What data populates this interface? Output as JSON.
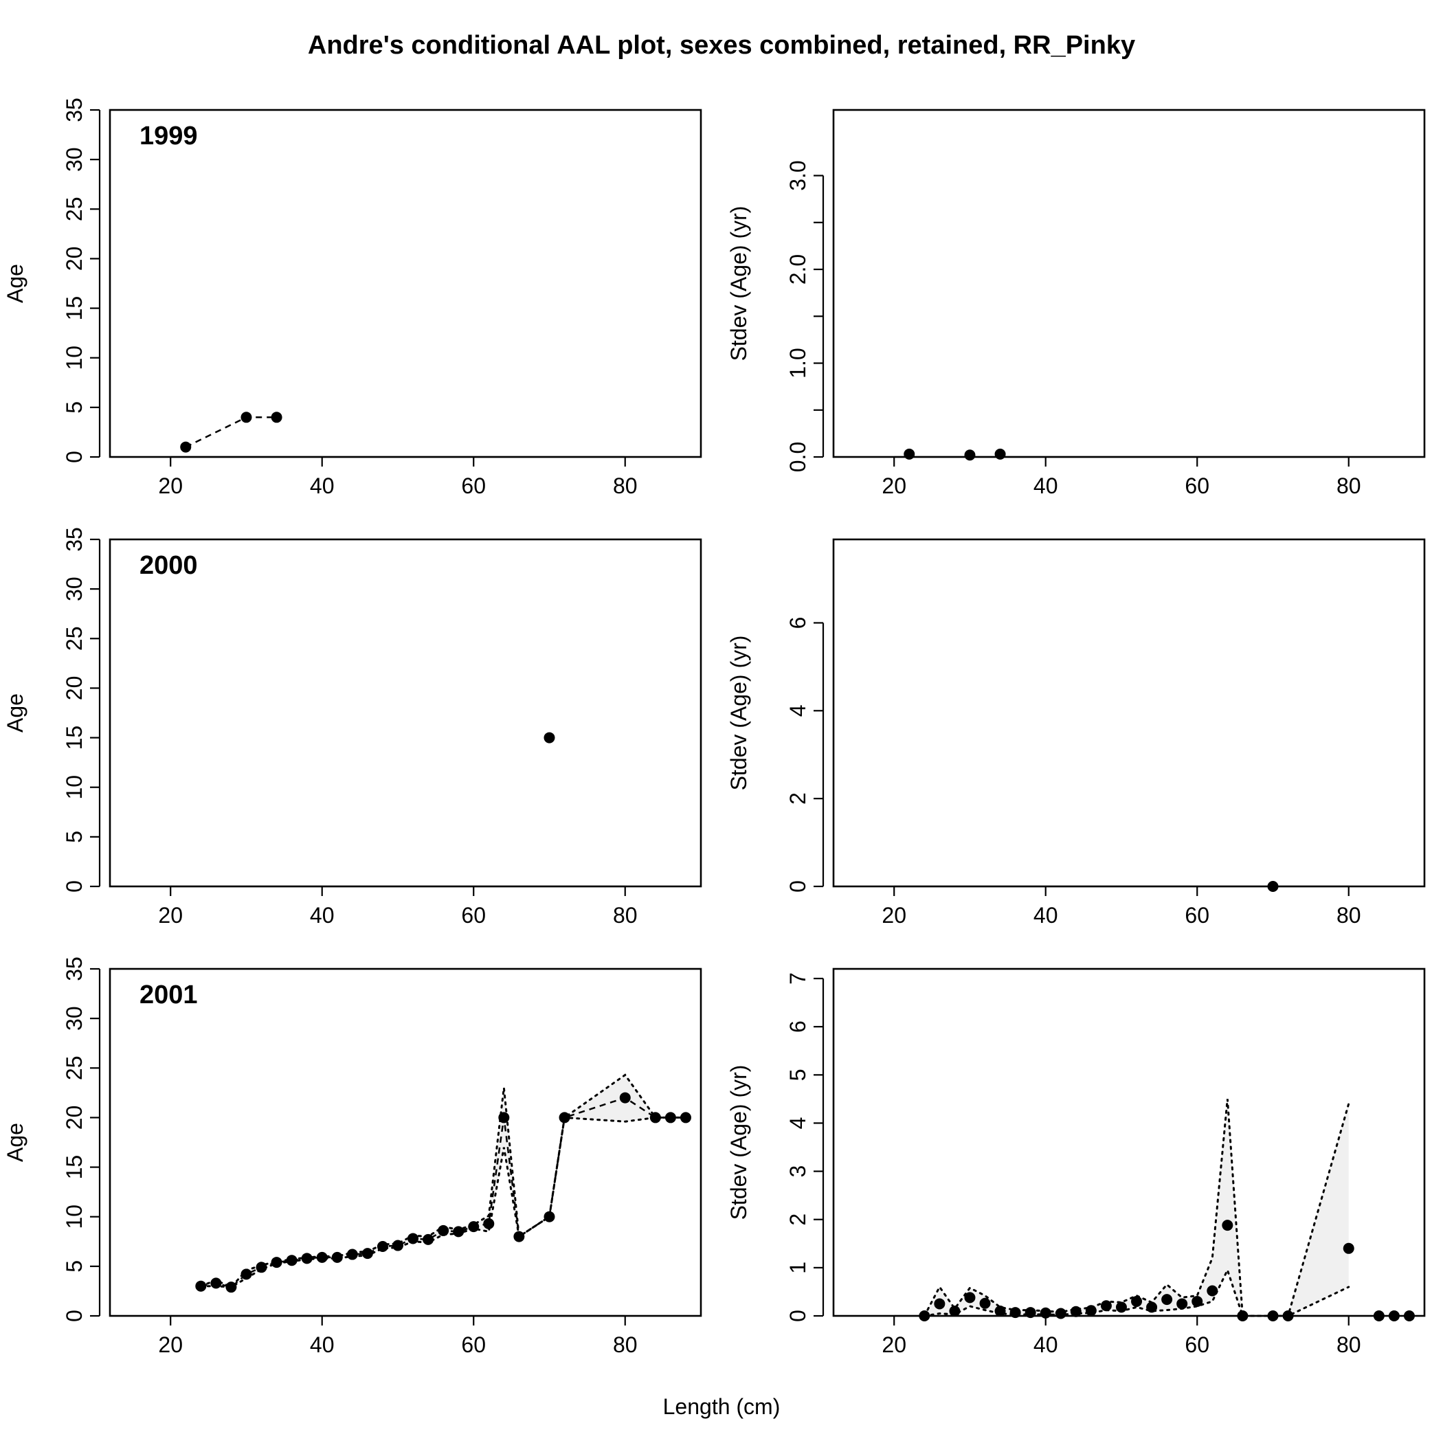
{
  "chart_data": {
    "type": "scatter",
    "title": "Andre's conditional AAL plot, sexes combined, retained, RR_Pinky",
    "xlabel": "Length (cm)",
    "xlim": [
      12,
      90
    ],
    "xticks": [
      20,
      40,
      60,
      80
    ],
    "panels": [
      {
        "id": "age-1999",
        "year": "1999",
        "ylabel": "Age",
        "ylim": [
          0,
          35
        ],
        "yticks": [
          "0",
          "5",
          "10",
          "15",
          "20",
          "25",
          "30",
          "35"
        ],
        "x": [
          22,
          30,
          34
        ],
        "obs": [
          1,
          4,
          4
        ],
        "obs_line": true,
        "band_x": [],
        "band_lo": [],
        "band_hi": []
      },
      {
        "id": "sd-1999",
        "year": "",
        "ylabel": "Stdev (Age) (yr)",
        "ylim": [
          0,
          3.7
        ],
        "yticks": [
          "0.0",
          "",
          "1.0",
          "",
          "2.0",
          "",
          "3.0"
        ],
        "x": [
          22,
          30,
          34
        ],
        "obs": [
          0.03,
          0.02,
          0.03
        ],
        "obs_line": false,
        "band_x": [],
        "band_lo": [],
        "band_hi": []
      },
      {
        "id": "age-2000",
        "year": "2000",
        "ylabel": "Age",
        "ylim": [
          0,
          35
        ],
        "yticks": [
          "0",
          "5",
          "10",
          "15",
          "20",
          "25",
          "30",
          "35"
        ],
        "x": [
          70
        ],
        "obs": [
          15
        ],
        "obs_line": false,
        "band_x": [],
        "band_lo": [],
        "band_hi": []
      },
      {
        "id": "sd-2000",
        "year": "",
        "ylabel": "Stdev (Age) (yr)",
        "ylim": [
          0,
          7.9
        ],
        "yticks": [
          "0",
          "2",
          "4",
          "6"
        ],
        "x": [
          70
        ],
        "obs": [
          0
        ],
        "obs_line": false,
        "band_x": [],
        "band_lo": [],
        "band_hi": []
      },
      {
        "id": "age-2001",
        "year": "2001",
        "ylabel": "Age",
        "ylim": [
          0,
          35
        ],
        "yticks": [
          "0",
          "5",
          "10",
          "15",
          "20",
          "25",
          "30",
          "35"
        ],
        "x": [
          24,
          26,
          28,
          30,
          32,
          34,
          36,
          38,
          40,
          42,
          44,
          46,
          48,
          50,
          52,
          54,
          56,
          58,
          60,
          62,
          64,
          66,
          70,
          72,
          80,
          84,
          86,
          88
        ],
        "obs": [
          3,
          3.3,
          2.9,
          4.2,
          4.9,
          5.4,
          5.6,
          5.8,
          5.9,
          5.9,
          6.2,
          6.3,
          7.0,
          7.1,
          7.8,
          7.7,
          8.6,
          8.5,
          9.0,
          9.3,
          20,
          8.0,
          10,
          20,
          22,
          20,
          20,
          20
        ],
        "obs_line": true,
        "band_x": [
          24,
          26,
          28,
          30,
          32,
          34,
          36,
          38,
          40,
          42,
          44,
          46,
          48,
          50,
          52,
          54,
          56,
          58,
          60,
          62,
          64,
          66,
          70,
          72,
          80,
          84,
          86,
          88
        ],
        "band_lo": [
          3,
          3.0,
          2.9,
          3.8,
          4.7,
          5.3,
          5.5,
          5.7,
          5.8,
          5.8,
          6.0,
          6.1,
          6.8,
          6.9,
          7.5,
          7.4,
          8.2,
          8.3,
          8.8,
          8.5,
          17.0,
          8.0,
          10,
          20,
          19.6,
          20,
          20,
          20
        ],
        "band_hi": [
          3,
          3.6,
          2.9,
          4.6,
          5.1,
          5.5,
          5.7,
          5.9,
          6.0,
          6.0,
          6.4,
          6.5,
          7.2,
          7.3,
          8.1,
          8.0,
          9.0,
          8.7,
          9.2,
          10.1,
          23.0,
          8.0,
          10,
          20,
          24.3,
          20,
          20,
          20
        ]
      },
      {
        "id": "sd-2001",
        "year": "",
        "ylabel": "Stdev (Age) (yr)",
        "ylim": [
          0,
          7.2
        ],
        "yticks": [
          "0",
          "1",
          "2",
          "3",
          "4",
          "5",
          "6",
          "7"
        ],
        "x": [
          24,
          26,
          28,
          30,
          32,
          34,
          36,
          38,
          40,
          42,
          44,
          46,
          48,
          50,
          52,
          54,
          56,
          58,
          60,
          62,
          64,
          66,
          70,
          72,
          80,
          84,
          86,
          88
        ],
        "obs": [
          0,
          0.25,
          0.1,
          0.38,
          0.26,
          0.1,
          0.07,
          0.07,
          0.06,
          0.05,
          0.09,
          0.11,
          0.21,
          0.18,
          0.3,
          0.18,
          0.34,
          0.25,
          0.3,
          0.52,
          1.88,
          0,
          0,
          0,
          1.4,
          0,
          0,
          0
        ],
        "obs_line": false,
        "band_x": [
          24,
          26,
          28,
          30,
          32,
          34,
          36,
          38,
          40,
          42,
          44,
          46,
          48,
          50,
          52,
          54,
          56,
          58,
          60,
          62,
          64,
          66,
          70,
          72,
          80
        ],
        "band_lo": [
          0,
          0.05,
          0.03,
          0.2,
          0.12,
          0.05,
          0.03,
          0.03,
          0.03,
          0.02,
          0.05,
          0.06,
          0.12,
          0.1,
          0.18,
          0.1,
          0.12,
          0.15,
          0.2,
          0.3,
          0.95,
          0,
          0,
          0,
          0.6
        ],
        "band_hi": [
          0,
          0.6,
          0.15,
          0.58,
          0.42,
          0.18,
          0.12,
          0.12,
          0.1,
          0.08,
          0.14,
          0.17,
          0.3,
          0.28,
          0.42,
          0.28,
          0.65,
          0.38,
          0.42,
          1.2,
          4.5,
          0,
          0,
          0,
          4.4
        ]
      }
    ]
  }
}
